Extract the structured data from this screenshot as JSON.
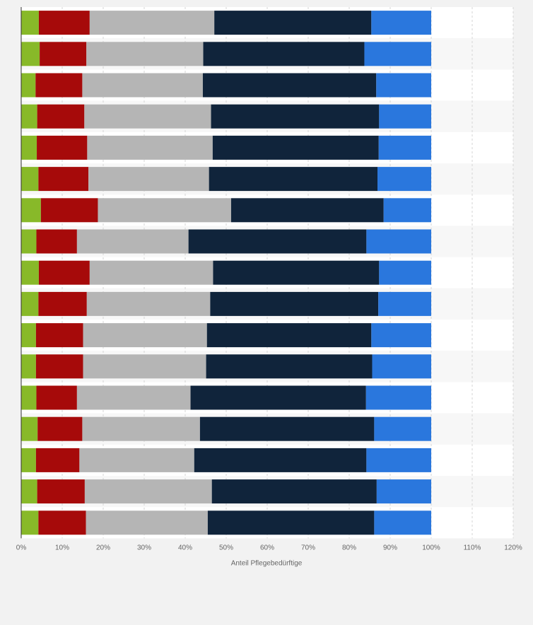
{
  "chart_data": {
    "type": "bar",
    "orientation": "horizontal",
    "stacked": true,
    "xlabel": "Anteil Pflegebedürftige",
    "x_ticks": [
      "0%",
      "10%",
      "20%",
      "30%",
      "40%",
      "50%",
      "60%",
      "70%",
      "80%",
      "90%",
      "100%",
      "110%",
      "120%"
    ],
    "xlim": [
      0,
      120
    ],
    "grid": true,
    "row_count": 17,
    "series": [
      {
        "color": "#88b929",
        "values": [
          4.3,
          4.5,
          3.5,
          3.9,
          3.8,
          4.2,
          4.8,
          3.7,
          4.3,
          4.2,
          3.6,
          3.6,
          3.7,
          4.0,
          3.6,
          3.9,
          4.2
        ]
      },
      {
        "color": "#a60a0a",
        "values": [
          12.4,
          11.4,
          11.4,
          11.5,
          12.3,
          12.2,
          13.9,
          9.9,
          12.4,
          11.8,
          11.5,
          11.5,
          9.9,
          10.9,
          10.6,
          11.6,
          11.6
        ]
      },
      {
        "color": "#b5b5b5",
        "values": [
          30.4,
          28.5,
          29.4,
          30.9,
          30.6,
          29.4,
          32.5,
          27.2,
          30.1,
          30.1,
          30.2,
          30.0,
          27.7,
          28.7,
          28.0,
          31.0,
          29.7
        ]
      },
      {
        "color": "#10243b",
        "values": [
          38.3,
          39.3,
          42.3,
          41.0,
          40.5,
          41.1,
          37.2,
          43.4,
          40.5,
          41.0,
          40.1,
          40.5,
          42.8,
          42.5,
          42.0,
          40.2,
          40.6
        ]
      },
      {
        "color": "#2a77dd",
        "values": [
          14.6,
          16.3,
          13.4,
          12.7,
          12.8,
          13.1,
          11.6,
          15.8,
          12.7,
          12.9,
          14.6,
          14.4,
          15.9,
          13.9,
          15.8,
          13.3,
          13.9
        ]
      }
    ]
  }
}
